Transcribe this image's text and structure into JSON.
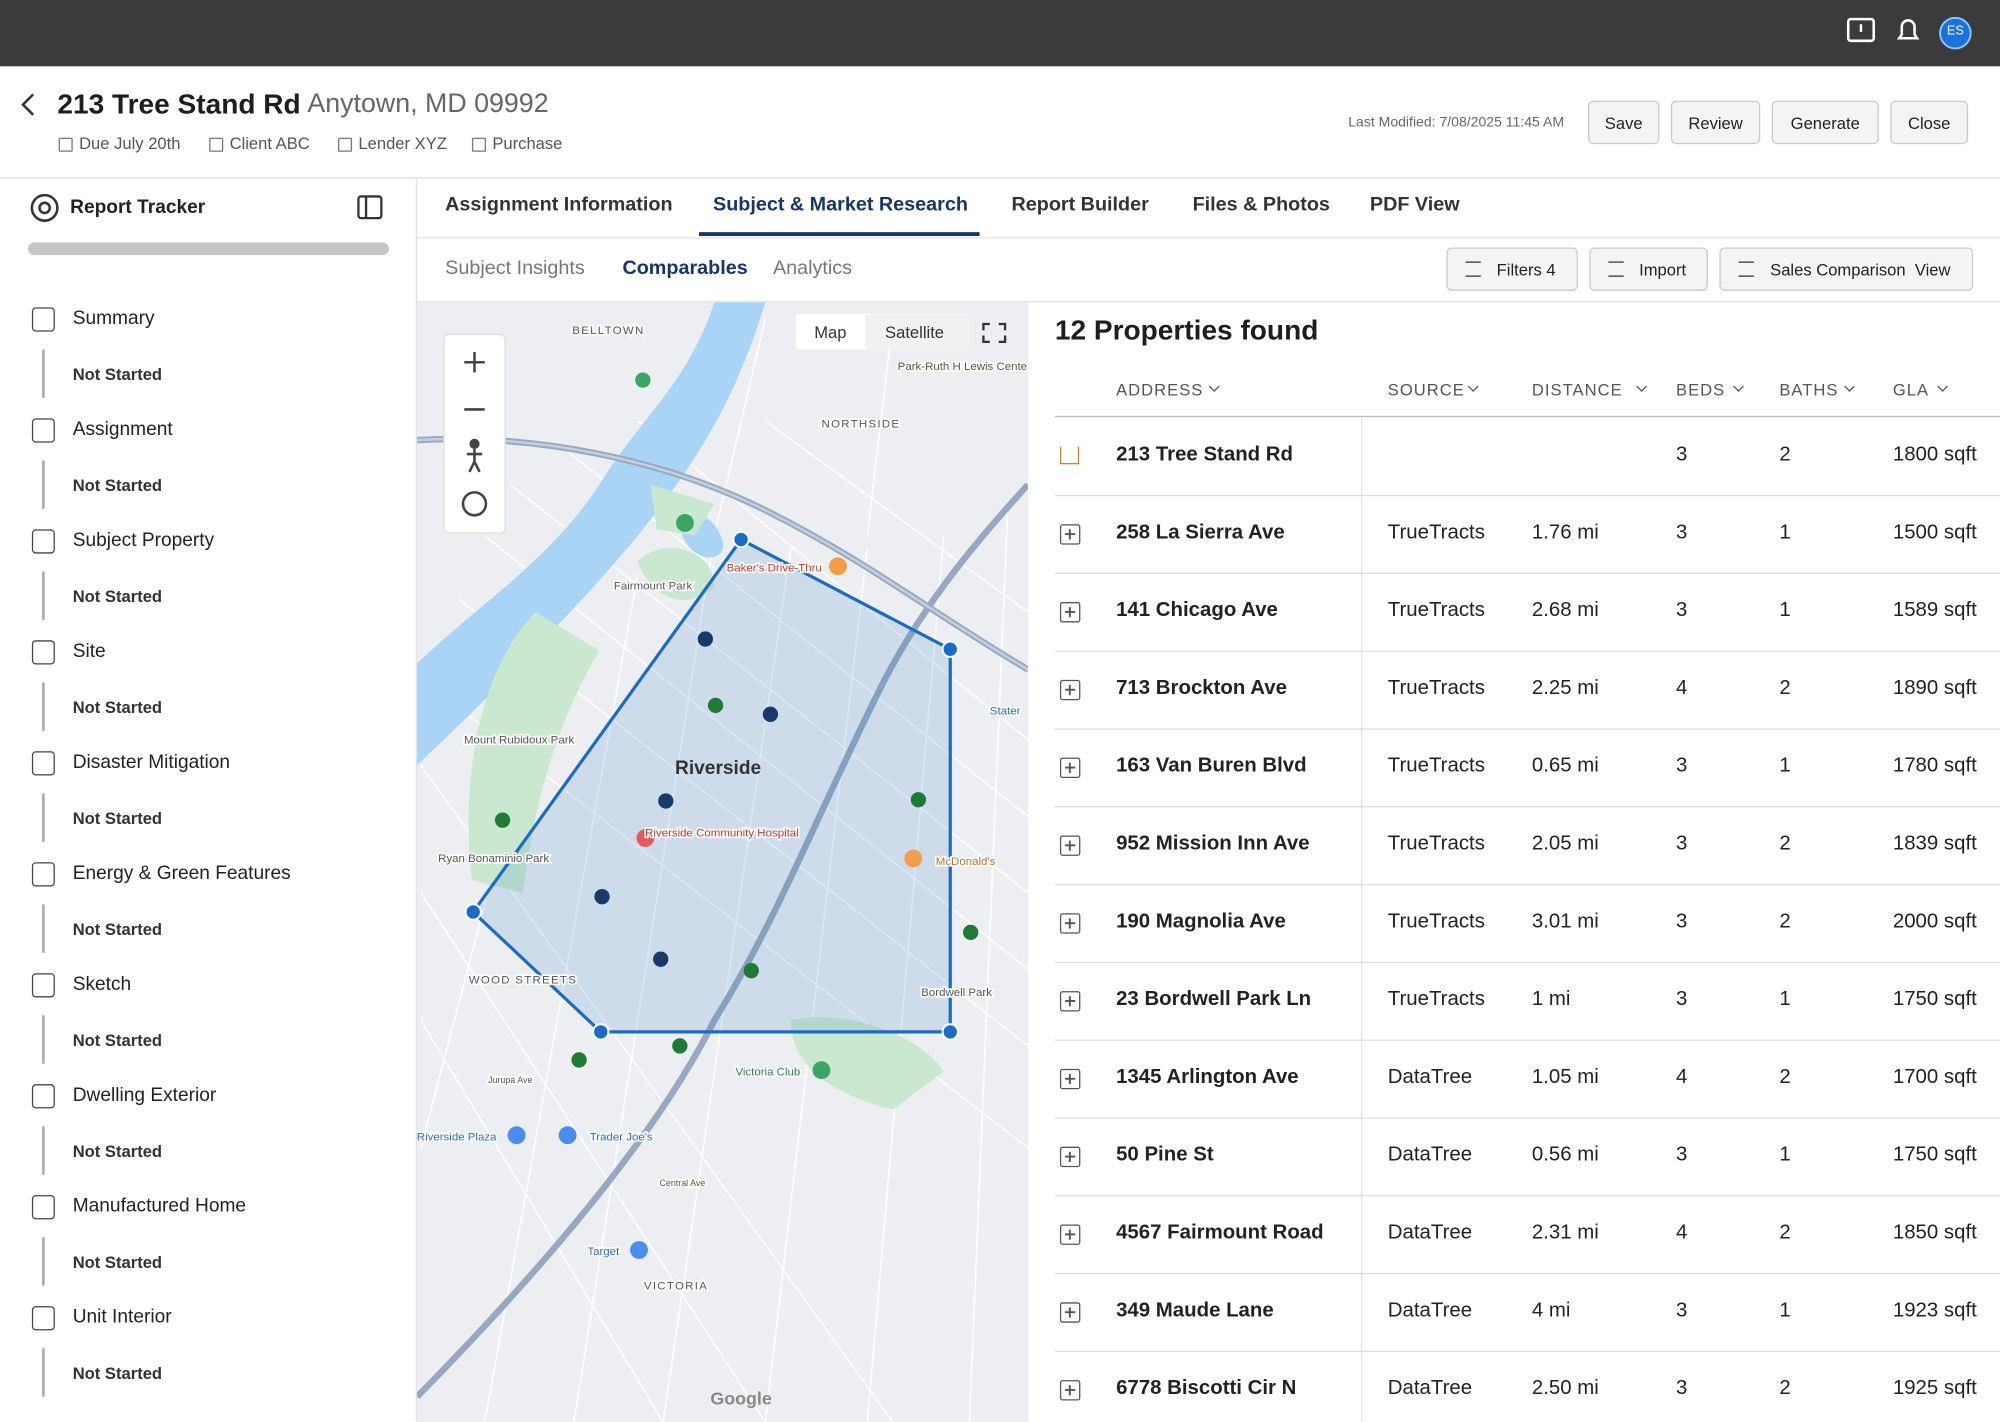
{
  "top_bar": {
    "avatar": "ES"
  },
  "header": {
    "title": "213 Tree Stand Rd",
    "location": "Anytown, MD 09992",
    "meta": [
      "Due July 20th",
      "Client ABC",
      "Lender XYZ",
      "Purchase"
    ],
    "last_modified": "Last Modified: 7/08/2025 11:45 AM",
    "buttons": [
      "Save",
      "Review",
      "Generate",
      "Close"
    ]
  },
  "sidebar": {
    "title": "Report Tracker",
    "items": [
      {
        "label": "Summary",
        "status": "Not Started"
      },
      {
        "label": "Assignment",
        "status": "Not Started"
      },
      {
        "label": "Subject Property",
        "status": "Not Started"
      },
      {
        "label": "Site",
        "status": "Not Started"
      },
      {
        "label": "Disaster Mitigation",
        "status": "Not Started"
      },
      {
        "label": "Energy & Green Features",
        "status": "Not Started"
      },
      {
        "label": "Sketch",
        "status": "Not Started"
      },
      {
        "label": "Dwelling Exterior",
        "status": "Not Started"
      },
      {
        "label": "Manufactured Home",
        "status": "Not Started"
      },
      {
        "label": "Unit Interior",
        "status": "Not Started"
      }
    ]
  },
  "tabs": {
    "items": [
      "Assignment Information",
      "Subject & Market Research",
      "Report Builder",
      "Files & Photos",
      "PDF View"
    ],
    "active": 1
  },
  "subtabs": {
    "items": [
      "Subject Insights",
      "Comparables",
      "Analytics"
    ],
    "active": 1,
    "buttons": [
      "Filters 4",
      "Import",
      "Sales Comparison  View"
    ]
  },
  "map": {
    "modes": [
      "Map",
      "Satellite"
    ],
    "labels": [
      "BELLTOWN",
      "NORTHSIDE",
      "Fairmount Park",
      "Baker's Drive-Thru",
      "Mount Rubidoux Park",
      "Riverside",
      "Riverside Community Hospital",
      "McDonald's",
      "Ryan Bonaminio Park",
      "WOOD STREETS",
      "Bordwell Park",
      "Victoria Club",
      "Trader Joe's",
      "Riverside Plaza",
      "Target",
      "VICTORIA",
      "Stater",
      "Central Ave",
      "Jurupa Ave",
      "Park-Ruth H Lewis Center",
      "Google"
    ]
  },
  "results": {
    "title": "12 Properties found",
    "columns": [
      "ADDRESS",
      "SOURCE",
      "DISTANCE",
      "BEDS",
      "BATHS",
      "GLA"
    ],
    "rows": [
      {
        "address": "213 Tree Stand Rd",
        "beds": 3,
        "baths": 2,
        "gla": "1800 sqft"
      },
      {
        "address": "258 La Sierra Ave",
        "source": "TrueTracts",
        "distance": "1.76 mi",
        "beds": 3,
        "baths": 1,
        "gla": "1500 sqft"
      },
      {
        "address": "141 Chicago Ave",
        "source": "TrueTracts",
        "distance": "2.68 mi",
        "beds": 3,
        "baths": 1,
        "gla": "1589 sqft"
      },
      {
        "address": "713 Brockton Ave",
        "source": "TrueTracts",
        "distance": "2.25 mi",
        "beds": 4,
        "baths": 2,
        "gla": "1890 sqft"
      },
      {
        "address": "163 Van Buren Blvd",
        "source": "TrueTracts",
        "distance": "0.65 mi",
        "beds": 3,
        "baths": 1,
        "gla": "1780 sqft"
      },
      {
        "address": "952 Mission Inn Ave",
        "source": "TrueTracts",
        "distance": "2.05 mi",
        "beds": 3,
        "baths": 2,
        "gla": "1839 sqft"
      },
      {
        "address": "190 Magnolia Ave",
        "source": "TrueTracts",
        "distance": "3.01 mi",
        "beds": 3,
        "baths": 2,
        "gla": "2000 sqft"
      },
      {
        "address": "23 Bordwell Park Ln",
        "source": "TrueTracts",
        "distance": "1 mi",
        "beds": 3,
        "baths": 1,
        "gla": "1750 sqft"
      },
      {
        "address": "1345 Arlington Ave",
        "source": "DataTree",
        "distance": "1.05 mi",
        "beds": 4,
        "baths": 2,
        "gla": "1700 sqft"
      },
      {
        "address": "50 Pine St",
        "source": "DataTree",
        "distance": "0.56 mi",
        "beds": 3,
        "baths": 1,
        "gla": "1750 sqft"
      },
      {
        "address": "4567 Fairmount Road",
        "source": "DataTree",
        "distance": "2.31 mi",
        "beds": 4,
        "baths": 2,
        "gla": "1850 sqft"
      },
      {
        "address": "349 Maude Lane",
        "source": "DataTree",
        "distance": "4 mi",
        "beds": 3,
        "baths": 1,
        "gla": "1923 sqft"
      },
      {
        "address": "6778 Biscotti Cir N",
        "source": "DataTree",
        "distance": "2.50 mi",
        "beds": 3,
        "baths": 2,
        "gla": "1925 sqft"
      }
    ]
  }
}
